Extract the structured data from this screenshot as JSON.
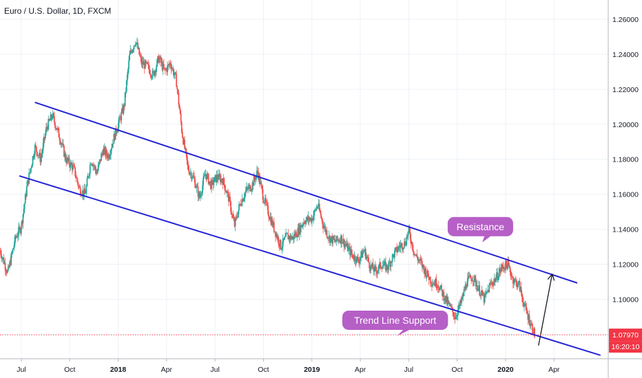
{
  "chart_data": {
    "type": "candlestick",
    "title": "Euro / U.S. Dollar, 1D, FXCM",
    "ylim": [
      1.066,
      1.271
    ],
    "xlim": [
      2017.39,
      2020.53
    ],
    "y_ticks": [
      "1.26000",
      "1.24000",
      "1.22000",
      "1.20000",
      "1.18000",
      "1.16000",
      "1.14000",
      "1.12000",
      "1.10000"
    ],
    "x_ticks": [
      {
        "label": "Jul",
        "x": 2017.5,
        "bold": false
      },
      {
        "label": "Oct",
        "x": 2017.75,
        "bold": false
      },
      {
        "label": "2018",
        "x": 2018.0,
        "bold": true
      },
      {
        "label": "Apr",
        "x": 2018.25,
        "bold": false
      },
      {
        "label": "Jul",
        "x": 2018.5,
        "bold": false
      },
      {
        "label": "Oct",
        "x": 2018.75,
        "bold": false
      },
      {
        "label": "2019",
        "x": 2019.0,
        "bold": true
      },
      {
        "label": "Apr",
        "x": 2019.25,
        "bold": false
      },
      {
        "label": "Jul",
        "x": 2019.5,
        "bold": false
      },
      {
        "label": "Oct",
        "x": 2019.75,
        "bold": false
      },
      {
        "label": "2020",
        "x": 2020.0,
        "bold": true
      },
      {
        "label": "Apr",
        "x": 2020.25,
        "bold": false
      }
    ],
    "price_path": [
      [
        2017.39,
        1.128
      ],
      [
        2017.43,
        1.115
      ],
      [
        2017.47,
        1.135
      ],
      [
        2017.5,
        1.142
      ],
      [
        2017.53,
        1.165
      ],
      [
        2017.57,
        1.187
      ],
      [
        2017.6,
        1.18
      ],
      [
        2017.63,
        1.198
      ],
      [
        2017.66,
        1.205
      ],
      [
        2017.7,
        1.192
      ],
      [
        2017.73,
        1.18
      ],
      [
        2017.77,
        1.175
      ],
      [
        2017.8,
        1.163
      ],
      [
        2017.83,
        1.16
      ],
      [
        2017.86,
        1.18
      ],
      [
        2017.89,
        1.172
      ],
      [
        2017.92,
        1.185
      ],
      [
        2017.95,
        1.182
      ],
      [
        2017.98,
        1.193
      ],
      [
        2018.0,
        1.2
      ],
      [
        2018.03,
        1.21
      ],
      [
        2018.06,
        1.24
      ],
      [
        2018.09,
        1.248
      ],
      [
        2018.12,
        1.235
      ],
      [
        2018.15,
        1.233
      ],
      [
        2018.18,
        1.228
      ],
      [
        2018.21,
        1.238
      ],
      [
        2018.24,
        1.23
      ],
      [
        2018.27,
        1.235
      ],
      [
        2018.3,
        1.225
      ],
      [
        2018.33,
        1.195
      ],
      [
        2018.36,
        1.175
      ],
      [
        2018.39,
        1.169
      ],
      [
        2018.42,
        1.158
      ],
      [
        2018.45,
        1.172
      ],
      [
        2018.48,
        1.165
      ],
      [
        2018.51,
        1.17
      ],
      [
        2018.54,
        1.168
      ],
      [
        2018.57,
        1.158
      ],
      [
        2018.6,
        1.142
      ],
      [
        2018.63,
        1.155
      ],
      [
        2018.66,
        1.162
      ],
      [
        2018.69,
        1.165
      ],
      [
        2018.72,
        1.173
      ],
      [
        2018.75,
        1.158
      ],
      [
        2018.78,
        1.148
      ],
      [
        2018.81,
        1.139
      ],
      [
        2018.84,
        1.13
      ],
      [
        2018.87,
        1.136
      ],
      [
        2018.9,
        1.135
      ],
      [
        2018.93,
        1.139
      ],
      [
        2018.96,
        1.145
      ],
      [
        2019.0,
        1.146
      ],
      [
        2019.03,
        1.154
      ],
      [
        2019.06,
        1.142
      ],
      [
        2019.09,
        1.135
      ],
      [
        2019.12,
        1.133
      ],
      [
        2019.15,
        1.135
      ],
      [
        2019.18,
        1.13
      ],
      [
        2019.21,
        1.125
      ],
      [
        2019.24,
        1.122
      ],
      [
        2019.27,
        1.128
      ],
      [
        2019.3,
        1.119
      ],
      [
        2019.33,
        1.116
      ],
      [
        2019.36,
        1.12
      ],
      [
        2019.39,
        1.118
      ],
      [
        2019.42,
        1.125
      ],
      [
        2019.45,
        1.13
      ],
      [
        2019.48,
        1.132
      ],
      [
        2019.5,
        1.139
      ],
      [
        2019.53,
        1.126
      ],
      [
        2019.56,
        1.121
      ],
      [
        2019.59,
        1.115
      ],
      [
        2019.62,
        1.11
      ],
      [
        2019.65,
        1.109
      ],
      [
        2019.68,
        1.102
      ],
      [
        2019.71,
        1.096
      ],
      [
        2019.74,
        1.09
      ],
      [
        2019.77,
        1.098
      ],
      [
        2019.8,
        1.11
      ],
      [
        2019.83,
        1.113
      ],
      [
        2019.86,
        1.106
      ],
      [
        2019.89,
        1.1
      ],
      [
        2019.92,
        1.108
      ],
      [
        2019.95,
        1.112
      ],
      [
        2019.98,
        1.118
      ],
      [
        2020.01,
        1.12
      ],
      [
        2020.04,
        1.111
      ],
      [
        2020.07,
        1.108
      ],
      [
        2020.1,
        1.095
      ],
      [
        2020.13,
        1.086
      ],
      [
        2020.15,
        1.0797
      ]
    ],
    "lines": [
      {
        "name": "resistance",
        "color": "#2323d6",
        "points": [
          [
            2017.57,
            1.2125
          ],
          [
            2020.37,
            1.1093
          ]
        ]
      },
      {
        "name": "support",
        "color": "#2323d6",
        "points": [
          [
            2017.49,
            1.1705
          ],
          [
            2020.49,
            1.068
          ]
        ]
      },
      {
        "name": "arrow",
        "color": "#131722",
        "points": [
          [
            2020.17,
            1.0735
          ],
          [
            2020.24,
            1.114
          ]
        ]
      }
    ],
    "annotations": [
      {
        "text": "Resistance",
        "x": 2019.87,
        "y": 1.1415,
        "tail": [
          2019.88,
          1.1325
        ]
      },
      {
        "text": "Trend Line Support",
        "x": 2019.43,
        "y": 1.088,
        "tail": [
          2019.44,
          1.079
        ]
      }
    ],
    "last_price": {
      "value": 1.0797,
      "label": "1.07970",
      "countdown": "16:20:10",
      "color": "#f23645"
    },
    "colors": {
      "up": "#26a69a",
      "down": "#ef5350",
      "grid": "#eef1f6",
      "bubble": "#b65fc7",
      "axis": "#b2b5be"
    }
  }
}
